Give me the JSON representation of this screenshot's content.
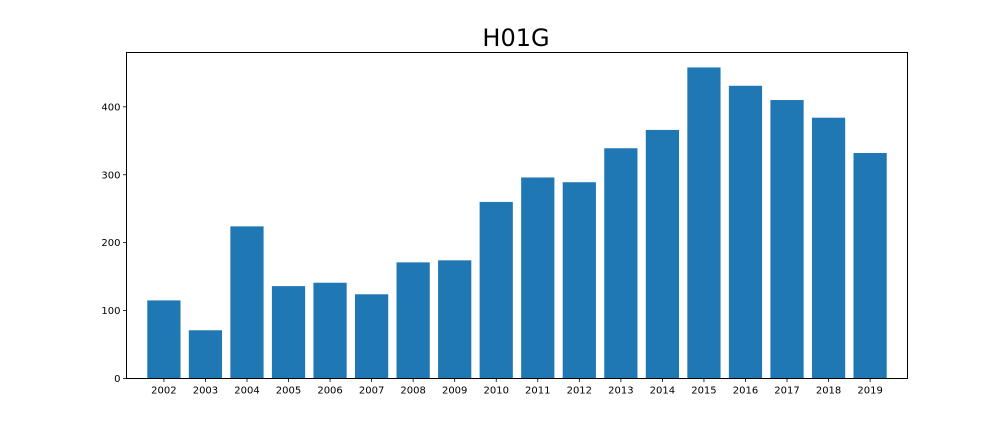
{
  "chart_data": {
    "type": "bar",
    "title": "H01G",
    "xlabel": "",
    "ylabel": "",
    "categories": [
      "2002",
      "2003",
      "2004",
      "2005",
      "2006",
      "2007",
      "2008",
      "2009",
      "2010",
      "2011",
      "2012",
      "2013",
      "2014",
      "2015",
      "2016",
      "2017",
      "2018",
      "2019"
    ],
    "values": [
      115,
      71,
      224,
      136,
      141,
      124,
      171,
      174,
      260,
      296,
      289,
      339,
      366,
      458,
      431,
      410,
      384,
      332
    ],
    "ylim": [
      0,
      480
    ],
    "yticks": [
      0,
      100,
      200,
      300,
      400
    ],
    "bar_color": "#1f77b4",
    "grid": false,
    "legend": "none"
  }
}
